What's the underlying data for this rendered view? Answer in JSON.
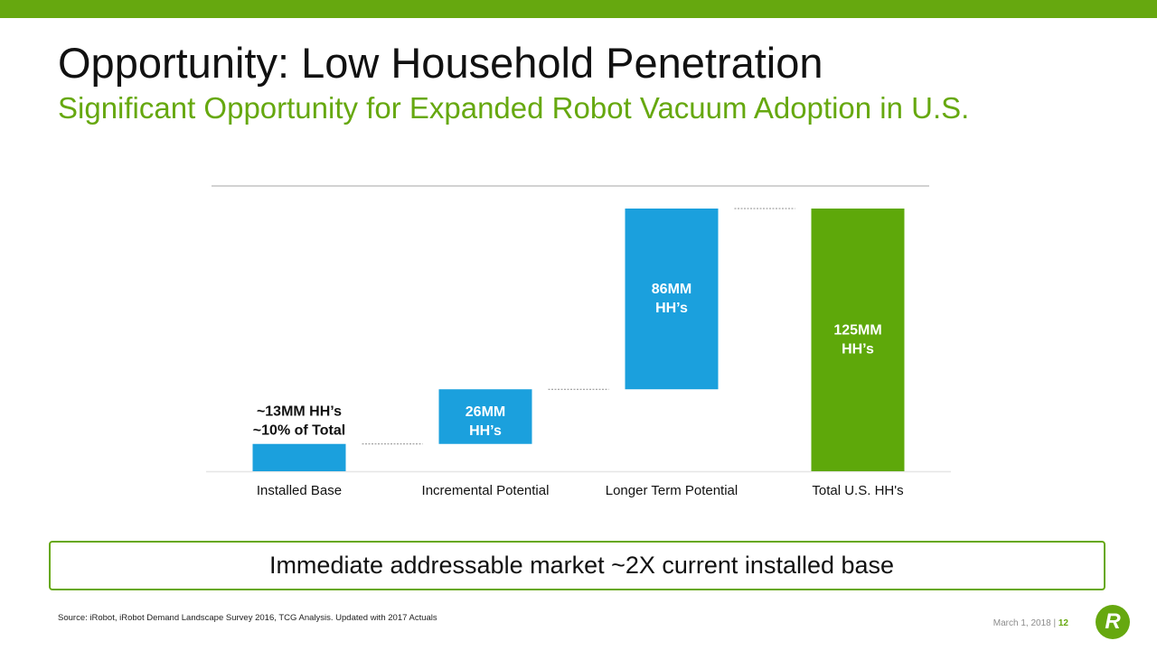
{
  "colors": {
    "accent": "#66a80f",
    "bar_blue": "#1ba0dd",
    "bar_green": "#5ea80a"
  },
  "slide": {
    "title": "Opportunity: Low Household Penetration",
    "subtitle": "Significant Opportunity for Expanded Robot Vacuum Adoption in U.S.",
    "callout": "Immediate addressable market ~2X current installed base",
    "source": "Source: iRobot, iRobot Demand Landscape Survey 2016, TCG Analysis. Updated with 2017 Actuals",
    "date": "March 1, 2018 |",
    "page_number": "12",
    "logo_icon": "irobot-logo-icon",
    "logo_text": "R"
  },
  "chart_data": {
    "type": "bar",
    "subtype": "waterfall",
    "categories": [
      "Installed Base",
      "Incremental Potential",
      "Longer Term Potential",
      "Total U.S. HH's"
    ],
    "values": [
      13,
      26,
      86,
      125
    ],
    "bar_bottoms": [
      0,
      13,
      39,
      0
    ],
    "bar_colors": [
      "#1ba0dd",
      "#1ba0dd",
      "#1ba0dd",
      "#5ea80a"
    ],
    "data_labels": [
      [
        "~13MM HH’s",
        "~10% of Total"
      ],
      [
        "26MM",
        "HH’s"
      ],
      [
        "86MM",
        "HH’s"
      ],
      [
        "125MM",
        "HH’s"
      ]
    ],
    "unit": "MM households",
    "ylim": [
      0,
      125
    ],
    "grid": false,
    "legend": "none"
  }
}
